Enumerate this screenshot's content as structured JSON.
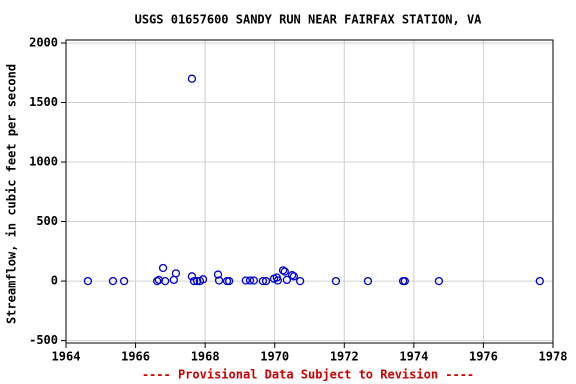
{
  "chart_data": {
    "type": "scatter",
    "title": "USGS 01657600 SANDY RUN NEAR FAIRFAX STATION, VA",
    "y_label": "Streamflow, in cubic feet per second",
    "note": "---- Provisional Data Subject to Revision ----",
    "color": "#0000cc",
    "grid": true,
    "x": [
      1964.63,
      1965.35,
      1965.67,
      1966.62,
      1966.67,
      1966.79,
      1966.85,
      1967.1,
      1967.16,
      1967.62,
      1967.62,
      1967.68,
      1967.77,
      1967.85,
      1967.94,
      1968.37,
      1968.4,
      1968.63,
      1968.69,
      1969.17,
      1969.29,
      1969.4,
      1969.66,
      1969.75,
      1969.98,
      1970.06,
      1970.09,
      1970.24,
      1970.29,
      1970.35,
      1970.5,
      1970.55,
      1970.73,
      1971.76,
      1972.68,
      1973.69,
      1973.74,
      1974.72,
      1977.62
    ],
    "values": [
      0,
      0,
      0,
      0,
      10,
      110,
      0,
      10,
      65,
      1700,
      40,
      0,
      0,
      0,
      15,
      55,
      5,
      0,
      0,
      5,
      5,
      5,
      0,
      0,
      20,
      30,
      5,
      90,
      80,
      10,
      50,
      40,
      0,
      0,
      0,
      0,
      0,
      0,
      0
    ],
    "xlim": [
      1964,
      1978
    ],
    "xticks": [
      1964,
      1966,
      1968,
      1970,
      1972,
      1974,
      1976,
      1978
    ],
    "ylim": [
      -520,
      2025
    ],
    "yticks": [
      -500,
      0,
      500,
      1000,
      1500,
      2000
    ]
  }
}
